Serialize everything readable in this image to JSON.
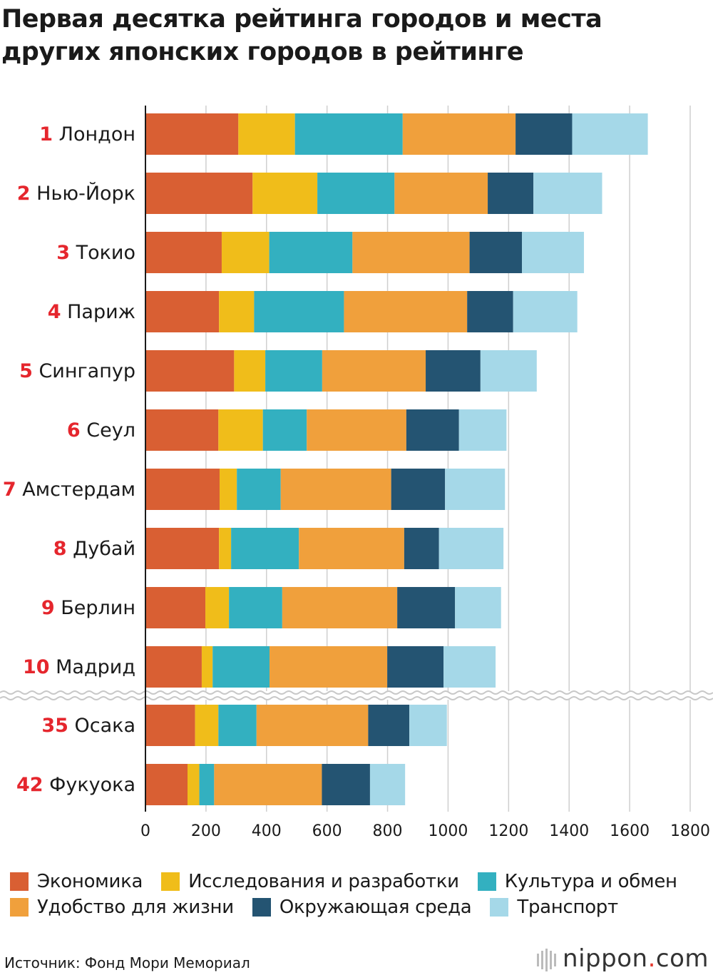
{
  "title": "Первая десятка рейтинга городов и места других японских городов в рейтинге",
  "source": "Источник: Фонд Мори Мемориал",
  "brand": {
    "name": "nippon",
    "dot": ".",
    "suffix": "com"
  },
  "colors": {
    "economy": "#d95f33",
    "research": "#f0bd1a",
    "culture": "#33b0c0",
    "livability": "#f0a03c",
    "environment": "#245472",
    "transport": "#a5d8e8",
    "rank": "#e5262d",
    "grid": "#cfcfcf"
  },
  "chart_data": {
    "type": "bar",
    "orientation": "horizontal",
    "stacked": true,
    "title": "Первая десятка рейтинга городов и места других японских городов в рейтинге",
    "xlabel": "",
    "ylabel": "",
    "xlim": [
      0,
      1800
    ],
    "xticks": [
      "0",
      "200",
      "400",
      "600",
      "800",
      "1000",
      "1200",
      "1400",
      "1600",
      "1800"
    ],
    "grid": true,
    "axis_break_after_index": 9,
    "categories": [
      {
        "rank": "1",
        "city": "Лондон"
      },
      {
        "rank": "2",
        "city": "Нью-Йорк"
      },
      {
        "rank": "3",
        "city": "Токио"
      },
      {
        "rank": "4",
        "city": "Париж"
      },
      {
        "rank": "5",
        "city": "Сингапур"
      },
      {
        "rank": "6",
        "city": "Сеул"
      },
      {
        "rank": "7",
        "city": "Амстердам"
      },
      {
        "rank": "8",
        "city": "Дубай"
      },
      {
        "rank": "9",
        "city": "Берлин"
      },
      {
        "rank": "10",
        "city": "Мадрид"
      },
      {
        "rank": "35",
        "city": "Осака"
      },
      {
        "rank": "42",
        "city": "Фукуока"
      }
    ],
    "series": [
      {
        "key": "economy",
        "name": "Экономика",
        "values": [
          307,
          354,
          252,
          243,
          293,
          241,
          245,
          243,
          198,
          186,
          164,
          139
        ]
      },
      {
        "key": "research",
        "name": "Исследования и разработки",
        "values": [
          187,
          214,
          157,
          116,
          103,
          147,
          57,
          40,
          78,
          36,
          77,
          39
        ]
      },
      {
        "key": "culture",
        "name": "Культура и обмен",
        "values": [
          356,
          255,
          275,
          297,
          188,
          145,
          145,
          224,
          176,
          188,
          126,
          49
        ]
      },
      {
        "key": "livability",
        "name": "Удобство для жизни",
        "values": [
          373,
          308,
          387,
          407,
          342,
          329,
          365,
          348,
          380,
          389,
          369,
          356
        ]
      },
      {
        "key": "environment",
        "name": "Окружающая среда",
        "values": [
          187,
          151,
          173,
          152,
          181,
          174,
          178,
          115,
          191,
          186,
          136,
          159
        ]
      },
      {
        "key": "transport",
        "name": "Транспорт",
        "values": [
          250,
          227,
          205,
          212,
          186,
          157,
          198,
          213,
          152,
          172,
          124,
          116
        ]
      }
    ]
  },
  "legend": {
    "rows": [
      [
        "economy",
        "research",
        "culture"
      ],
      [
        "livability",
        "environment",
        "transport"
      ]
    ],
    "labels": {
      "economy": "Экономика",
      "research": "Исследования и разработки",
      "culture": "Культура и обмен",
      "livability": "Удобство для жизни",
      "environment": "Окружающая среда",
      "transport": "Транспорт"
    }
  }
}
